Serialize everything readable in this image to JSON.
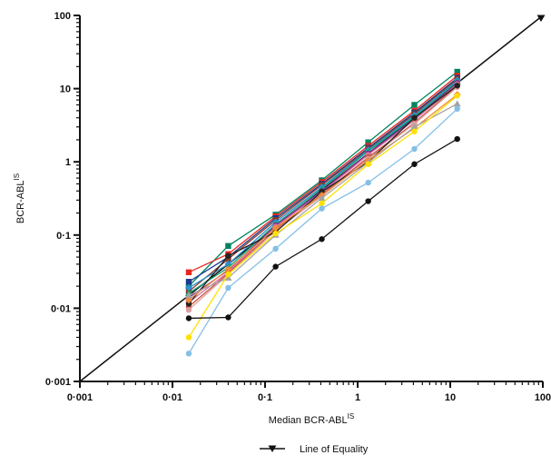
{
  "chart_data": {
    "type": "line",
    "scale": "log-log",
    "xlim": [
      0.001,
      100
    ],
    "ylim": [
      0.001,
      100
    ],
    "x_tick_labels": [
      "0·001",
      "0·01",
      "0·1",
      "1",
      "10",
      "100"
    ],
    "y_tick_labels": [
      "0·001",
      "0·01",
      "0·1",
      "1",
      "10",
      "100"
    ],
    "xlabel": {
      "text": "Median BCR-ABL",
      "sup": "IS"
    },
    "ylabel": {
      "text": "BCR-ABL",
      "sup": "IS"
    },
    "legend": {
      "placement": "bottom",
      "entries": [
        "Line of Equality"
      ]
    },
    "reference_line": {
      "name": "Line of Equality",
      "x": [
        0.001,
        100
      ],
      "y": [
        0.001,
        100
      ]
    },
    "x": [
      0.015,
      0.04,
      0.13,
      0.41,
      1.3,
      4.1,
      11.9
    ],
    "series": [
      {
        "color": "#00845f",
        "marker": "square",
        "values": [
          0.02,
          0.071,
          0.19,
          0.56,
          1.85,
          6.0,
          17.0
        ]
      },
      {
        "color": "#e8271f",
        "marker": "square",
        "values": [
          0.031,
          0.055,
          0.18,
          0.53,
          1.65,
          5.0,
          15.0
        ]
      },
      {
        "color": "#1b3a8c",
        "marker": "square",
        "values": [
          0.023,
          0.05,
          0.17,
          0.5,
          1.55,
          4.7,
          14.0
        ]
      },
      {
        "color": "#8a3b2a",
        "marker": "square",
        "values": [
          0.017,
          0.047,
          0.16,
          0.48,
          1.5,
          4.5,
          13.5
        ]
      },
      {
        "color": "#2b8fd1",
        "marker": "diamond",
        "values": [
          0.019,
          0.04,
          0.15,
          0.45,
          1.45,
          4.3,
          13.0
        ]
      },
      {
        "color": "#14a37a",
        "marker": "triangle",
        "values": [
          0.016,
          0.036,
          0.14,
          0.43,
          1.4,
          4.1,
          12.5
        ]
      },
      {
        "color": "#7a2d8c",
        "marker": "circle",
        "values": [
          0.014,
          0.033,
          0.135,
          0.4,
          1.3,
          3.9,
          12.0
        ]
      },
      {
        "color": "#d96fa0",
        "marker": "circle",
        "values": [
          0.012,
          0.031,
          0.13,
          0.38,
          1.25,
          3.7,
          11.5
        ]
      },
      {
        "color": "#c84a3a",
        "marker": "circle",
        "values": [
          0.0105,
          0.03,
          0.12,
          0.36,
          1.15,
          3.4,
          11.0
        ]
      },
      {
        "color": "#d9a0a0",
        "marker": "circle",
        "values": [
          0.0095,
          0.029,
          0.115,
          0.34,
          1.1,
          3.3,
          10.5
        ]
      },
      {
        "color": "#222222",
        "marker": "circle",
        "values": [
          0.0115,
          0.052,
          0.11,
          0.39,
          1.0,
          4.0,
          11.0
        ]
      },
      {
        "color": "#f08a3c",
        "marker": "diamond",
        "values": [
          0.013,
          0.034,
          0.125,
          0.35,
          1.05,
          2.9,
          8.3
        ]
      },
      {
        "color": "#a3a3a3",
        "marker": "triangle",
        "values": [
          0.015,
          0.026,
          0.1,
          0.32,
          0.98,
          3.0,
          6.2
        ]
      },
      {
        "color": "#ffe000",
        "marker": "circle",
        "values": [
          0.004,
          0.029,
          0.105,
          0.27,
          0.93,
          2.6,
          8.0
        ]
      },
      {
        "color": "#84bfe6",
        "marker": "circle",
        "values": [
          0.0024,
          0.019,
          0.065,
          0.23,
          0.52,
          1.5,
          5.3
        ]
      },
      {
        "color": "#111111",
        "marker": "circle",
        "values": [
          0.0073,
          0.0075,
          0.037,
          0.088,
          0.29,
          0.93,
          2.05
        ]
      }
    ]
  }
}
